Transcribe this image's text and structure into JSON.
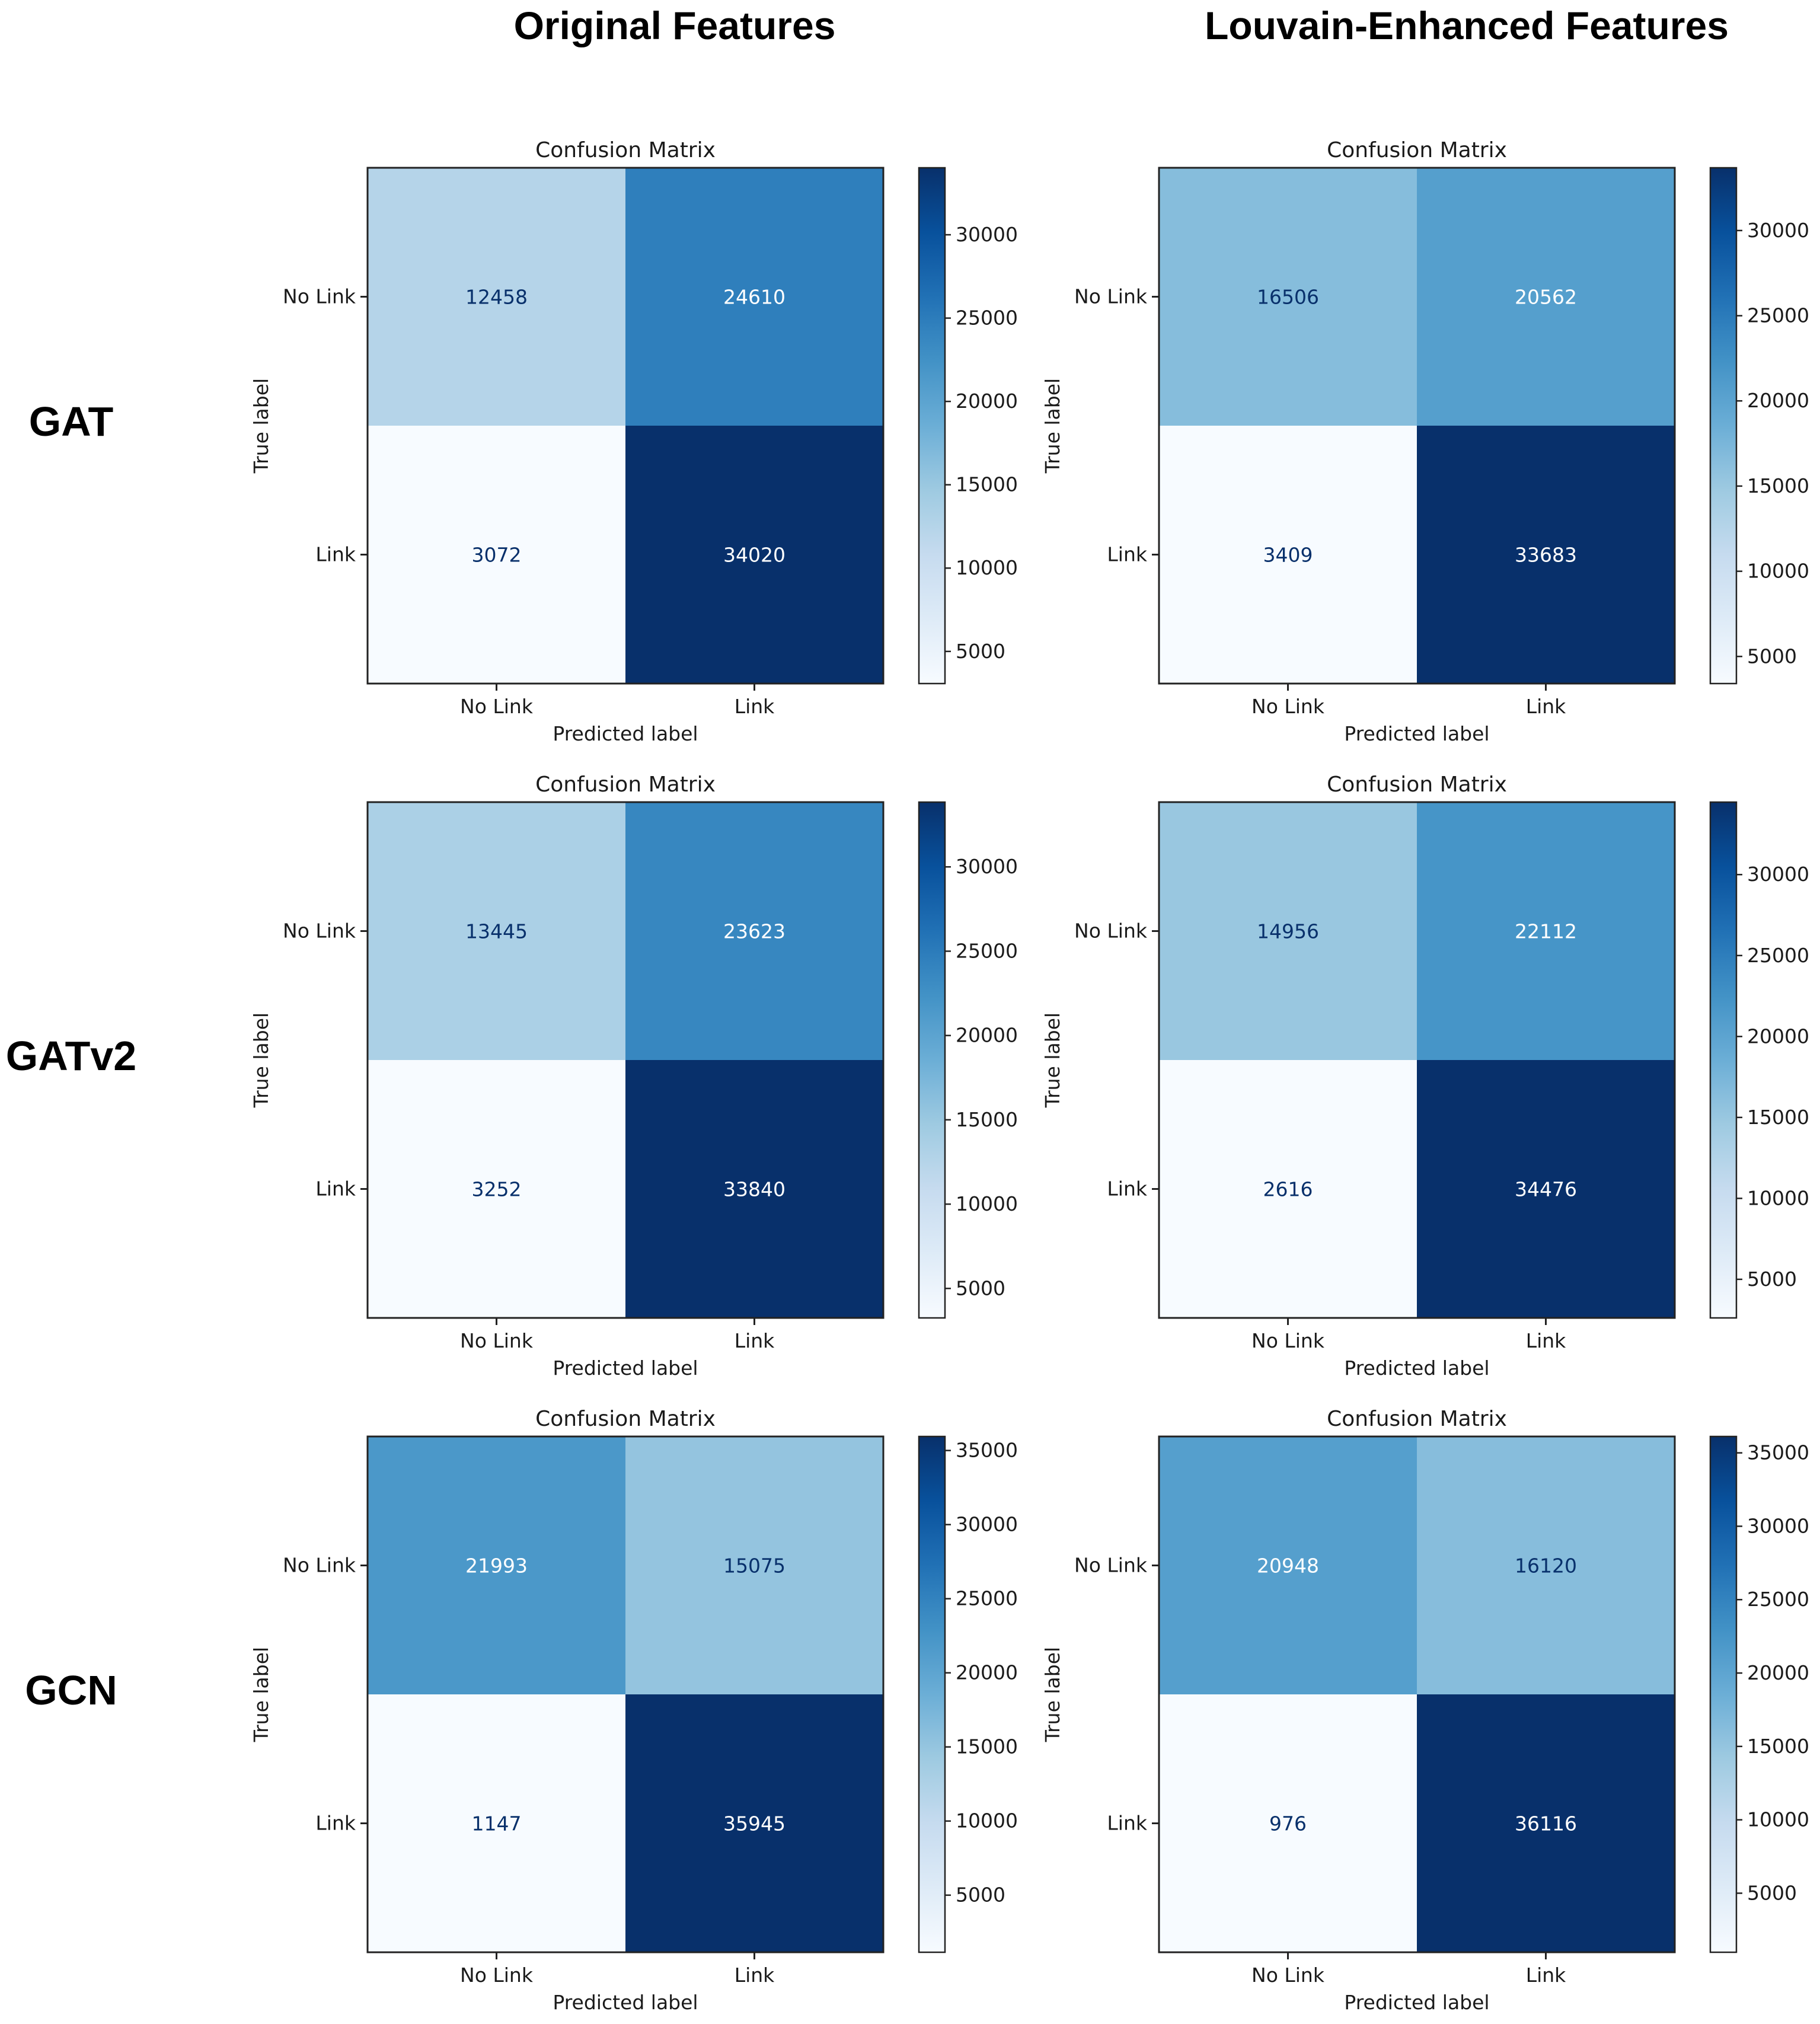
{
  "column_headers": [
    "Original Features",
    "Louvain-Enhanced Features"
  ],
  "row_labels": [
    "GAT",
    "GATv2",
    "GCN"
  ],
  "chart_data": [
    {
      "type": "heatmap",
      "model": "GAT",
      "features": "Original Features",
      "title": "Confusion Matrix",
      "xlabel": "Predicted label",
      "ylabel": "True label",
      "x_categories": [
        "No Link",
        "Link"
      ],
      "y_categories": [
        "No Link",
        "Link"
      ],
      "values": [
        [
          12458,
          24610
        ],
        [
          3072,
          34020
        ]
      ],
      "colorbar": {
        "min": 3072,
        "max": 34020,
        "ticks": [
          5000,
          10000,
          15000,
          20000,
          25000,
          30000
        ]
      },
      "colormap": "Blues"
    },
    {
      "type": "heatmap",
      "model": "GAT",
      "features": "Louvain-Enhanced Features",
      "title": "Confusion Matrix",
      "xlabel": "Predicted label",
      "ylabel": "True label",
      "x_categories": [
        "No Link",
        "Link"
      ],
      "y_categories": [
        "No Link",
        "Link"
      ],
      "values": [
        [
          16506,
          20562
        ],
        [
          3409,
          33683
        ]
      ],
      "colorbar": {
        "min": 3409,
        "max": 33683,
        "ticks": [
          5000,
          10000,
          15000,
          20000,
          25000,
          30000
        ]
      },
      "colormap": "Blues"
    },
    {
      "type": "heatmap",
      "model": "GATv2",
      "features": "Original Features",
      "title": "Confusion Matrix",
      "xlabel": "Predicted label",
      "ylabel": "True label",
      "x_categories": [
        "No Link",
        "Link"
      ],
      "y_categories": [
        "No Link",
        "Link"
      ],
      "values": [
        [
          13445,
          23623
        ],
        [
          3252,
          33840
        ]
      ],
      "colorbar": {
        "min": 3252,
        "max": 33840,
        "ticks": [
          5000,
          10000,
          15000,
          20000,
          25000,
          30000
        ]
      },
      "colormap": "Blues"
    },
    {
      "type": "heatmap",
      "model": "GATv2",
      "features": "Louvain-Enhanced Features",
      "title": "Confusion Matrix",
      "xlabel": "Predicted label",
      "ylabel": "True label",
      "x_categories": [
        "No Link",
        "Link"
      ],
      "y_categories": [
        "No Link",
        "Link"
      ],
      "values": [
        [
          14956,
          22112
        ],
        [
          2616,
          34476
        ]
      ],
      "colorbar": {
        "min": 2616,
        "max": 34476,
        "ticks": [
          5000,
          10000,
          15000,
          20000,
          25000,
          30000
        ]
      },
      "colormap": "Blues"
    },
    {
      "type": "heatmap",
      "model": "GCN",
      "features": "Original Features",
      "title": "Confusion Matrix",
      "xlabel": "Predicted label",
      "ylabel": "True label",
      "x_categories": [
        "No Link",
        "Link"
      ],
      "y_categories": [
        "No Link",
        "Link"
      ],
      "values": [
        [
          21993,
          15075
        ],
        [
          1147,
          35945
        ]
      ],
      "colorbar": {
        "min": 1147,
        "max": 35945,
        "ticks": [
          5000,
          10000,
          15000,
          20000,
          25000,
          30000,
          35000
        ]
      },
      "colormap": "Blues"
    },
    {
      "type": "heatmap",
      "model": "GCN",
      "features": "Louvain-Enhanced Features",
      "title": "Confusion Matrix",
      "xlabel": "Predicted label",
      "ylabel": "True label",
      "x_categories": [
        "No Link",
        "Link"
      ],
      "y_categories": [
        "No Link",
        "Link"
      ],
      "values": [
        [
          20948,
          16120
        ],
        [
          976,
          36116
        ]
      ],
      "colorbar": {
        "min": 976,
        "max": 36116,
        "ticks": [
          5000,
          10000,
          15000,
          20000,
          25000,
          30000,
          35000
        ]
      },
      "colormap": "Blues"
    }
  ]
}
